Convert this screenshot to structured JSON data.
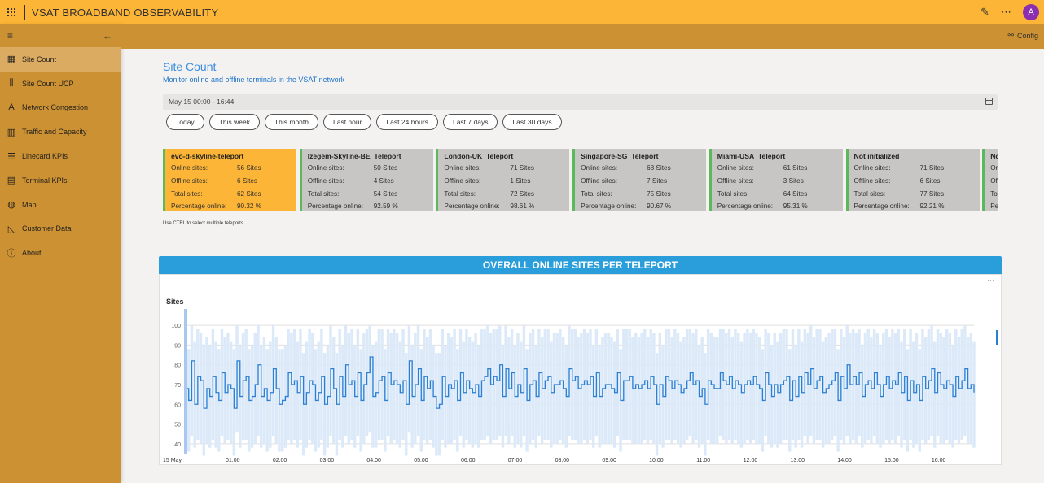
{
  "app": {
    "title": "VSAT BROADBAND OBSERVABILITY",
    "avatar_initial": "A"
  },
  "topbar_icons": [
    "app-launcher-icon",
    "edit-pencil-icon",
    "more-ellipsis-icon"
  ],
  "sidebar": {
    "items": [
      {
        "label": "Site Count",
        "icon": "site-count-icon",
        "active": true
      },
      {
        "label": "Site Count UCP",
        "icon": "site-count-ucp-icon"
      },
      {
        "label": "Network Congestion",
        "icon": "network-congestion-icon"
      },
      {
        "label": "Traffic and Capacity",
        "icon": "traffic-capacity-icon"
      },
      {
        "label": "Linecard KPIs",
        "icon": "linecard-kpis-icon"
      },
      {
        "label": "Terminal KPIs",
        "icon": "terminal-kpis-icon"
      },
      {
        "label": "Map",
        "icon": "globe-icon"
      },
      {
        "label": "Customer Data",
        "icon": "customer-data-icon"
      },
      {
        "label": "About",
        "icon": "info-icon"
      }
    ]
  },
  "cmdbar": {
    "config_label": "Config"
  },
  "page": {
    "title": "Site Count",
    "subtitle": "Monitor online and offline terminals in the VSAT network",
    "date_range": "May 15 00:00 - 16:44",
    "filters": [
      "Today",
      "This week",
      "This month",
      "Last hour",
      "Last 24 hours",
      "Last 7 days",
      "Last 30 days"
    ],
    "hint": "Use CTRL to select multiple teleports"
  },
  "teleports": [
    {
      "name": "evo-d-skyline-teleport",
      "online": "56 Sites",
      "offline": "6 Sites",
      "total": "62 Sites",
      "pct": "90.32 %",
      "selected": true
    },
    {
      "name": "Izegem-Skyline-BE_Teleport",
      "online": "50 Sites",
      "offline": "4 Sites",
      "total": "54 Sites",
      "pct": "92.59 %"
    },
    {
      "name": "London-UK_Teleport",
      "online": "71 Sites",
      "offline": "1 Sites",
      "total": "72 Sites",
      "pct": "98.61 %"
    },
    {
      "name": "Singapore-SG_Teleport",
      "online": "68 Sites",
      "offline": "7 Sites",
      "total": "75 Sites",
      "pct": "90.67 %"
    },
    {
      "name": "Miami-USA_Teleport",
      "online": "61 Sites",
      "offline": "3 Sites",
      "total": "64 Sites",
      "pct": "95.31 %"
    },
    {
      "name": "Not initialized",
      "online": "71 Sites",
      "offline": "6 Sites",
      "total": "77 Sites",
      "pct": "92.21 %"
    },
    {
      "name": "No",
      "online": "",
      "offline": "",
      "total": "",
      "pct": ""
    }
  ],
  "card_labels": {
    "online": "Online sites:",
    "offline": "Offline sites:",
    "total": "Total sites:",
    "pct": "Percentage online:"
  },
  "chart_banner": "OVERALL ONLINE SITES PER TELEPORT",
  "chart_data": {
    "type": "line",
    "ylabel": "Sites",
    "ylim": [
      35,
      105
    ],
    "yticks": [
      40,
      50,
      60,
      70,
      80,
      90,
      100
    ],
    "xticks": [
      "15 May",
      "01:00",
      "02:00",
      "03:00",
      "04:00",
      "05:00",
      "06:00",
      "07:00",
      "08:00",
      "09:00",
      "10:00",
      "11:00",
      "12:00",
      "13:00",
      "14:00",
      "15:00",
      "16:00"
    ],
    "x_start_hours": 0,
    "x_end_hours": 16.75,
    "series": [
      {
        "values": [
          68,
          62,
          82,
          60,
          74,
          72,
          58,
          68,
          64,
          74,
          66,
          62,
          76,
          66,
          70,
          68,
          58,
          82,
          64,
          72,
          74,
          62,
          64,
          70,
          80,
          64,
          68,
          62,
          66,
          78,
          68,
          60,
          62,
          64,
          76,
          70,
          72,
          66,
          74,
          60,
          66,
          72,
          70,
          62,
          66,
          74,
          60,
          64,
          78,
          68,
          60,
          74,
          64,
          80,
          70,
          72,
          64,
          76,
          62,
          70,
          76,
          84,
          64,
          66,
          72,
          74,
          62,
          76,
          70,
          72,
          70,
          66,
          72,
          60,
          82,
          64,
          70,
          78,
          62,
          74,
          68,
          72,
          64,
          58,
          60,
          74,
          64,
          70,
          68,
          72,
          62,
          76,
          66,
          72,
          68,
          66,
          70,
          64,
          72,
          74,
          78,
          70,
          74,
          72,
          80,
          64,
          78,
          68,
          76,
          64,
          70,
          66,
          78,
          62,
          70,
          72,
          64,
          76,
          68,
          72,
          74,
          66,
          70,
          70,
          72,
          68,
          64,
          78,
          72,
          74,
          68,
          70,
          72,
          70,
          74,
          64,
          76,
          64,
          68,
          70,
          70,
          68,
          66,
          76,
          62,
          72,
          72,
          74,
          68,
          70,
          68,
          70,
          72,
          68,
          74,
          70,
          60,
          70,
          64,
          74,
          72,
          68,
          72,
          70,
          66,
          68,
          72,
          76,
          70,
          72,
          64,
          68,
          60,
          72,
          70,
          68,
          68,
          76,
          72,
          70,
          74,
          68,
          72,
          70,
          66,
          70,
          72,
          70,
          74,
          70,
          68,
          62,
          76,
          70,
          64,
          70,
          66,
          70,
          72,
          74,
          62,
          72,
          64,
          74,
          66,
          76,
          70,
          78,
          68,
          72,
          74,
          66,
          68,
          70,
          72,
          76,
          62,
          74,
          68,
          80,
          70,
          74,
          70,
          76,
          64,
          70,
          72,
          68,
          76,
          70,
          64,
          70,
          74,
          68,
          72,
          70,
          76,
          66,
          74,
          62,
          72,
          66,
          70,
          62,
          74,
          68,
          72,
          78,
          66,
          76,
          70,
          68,
          72,
          70,
          64,
          74,
          68,
          72,
          78,
          68,
          70,
          66
        ]
      },
      {
        "name": "band-high",
        "values": [
          96,
          88,
          100,
          92,
          98,
          96,
          90,
          94,
          90,
          98,
          92,
          88,
          98,
          94,
          96,
          92,
          88,
          100,
          90,
          96,
          98,
          88,
          90,
          96,
          100,
          90,
          94,
          88,
          92,
          100,
          94,
          88,
          88,
          90,
          98,
          96,
          98,
          92,
          98,
          86,
          92,
          98,
          96,
          88,
          92,
          98,
          86,
          90,
          100,
          94,
          86,
          98,
          90,
          100,
          96,
          98,
          90,
          98,
          88,
          96,
          98,
          100,
          90,
          92,
          98,
          98,
          88,
          98,
          96,
          98,
          96,
          92,
          98,
          86,
          100,
          90,
          96,
          100,
          88,
          98,
          94,
          98,
          90,
          86,
          86,
          98,
          90,
          96,
          94,
          98,
          88,
          98,
          92,
          98,
          94,
          92,
          96,
          90,
          98,
          98,
          100,
          96,
          98,
          98,
          100,
          90,
          100,
          94,
          98,
          90,
          96,
          92,
          100,
          88,
          96,
          98,
          90,
          98,
          94,
          98,
          98,
          92,
          96,
          96,
          98,
          94,
          90,
          100,
          98,
          98,
          94,
          96,
          98,
          96,
          98,
          90,
          98,
          90,
          94,
          96,
          96,
          94,
          92,
          98,
          88,
          98,
          98,
          98,
          94,
          96,
          94,
          96,
          98,
          94,
          98,
          96,
          86,
          96,
          90,
          98,
          98,
          94,
          98,
          96,
          92,
          94,
          98,
          98,
          96,
          98,
          90,
          94,
          86,
          98,
          96,
          94,
          94,
          98,
          98,
          96,
          98,
          94,
          98,
          96,
          92,
          96,
          98,
          96,
          98,
          96,
          94,
          88,
          98,
          96,
          90,
          96,
          92,
          96,
          98,
          98,
          88,
          98,
          90,
          98,
          92,
          98,
          96,
          100,
          94,
          98,
          98,
          92,
          94,
          96,
          98,
          98,
          88,
          98,
          94,
          100,
          96,
          98,
          96,
          98,
          90,
          96,
          98,
          94,
          98,
          96,
          90,
          96,
          98,
          94,
          98,
          96,
          98,
          92,
          98,
          88,
          98,
          92,
          96,
          88,
          98,
          94,
          98,
          100,
          92,
          98,
          96,
          94,
          98,
          96,
          90,
          98,
          94,
          98,
          100,
          94,
          96,
          92
        ]
      },
      {
        "name": "band-low",
        "values": [
          40,
          36,
          44,
          38,
          42,
          40,
          34,
          40,
          38,
          42,
          38,
          36,
          44,
          40,
          42,
          40,
          34,
          46,
          38,
          42,
          42,
          36,
          38,
          40,
          44,
          38,
          40,
          36,
          38,
          44,
          40,
          36,
          36,
          38,
          42,
          40,
          42,
          38,
          42,
          34,
          38,
          42,
          40,
          36,
          38,
          42,
          34,
          38,
          44,
          40,
          34,
          42,
          38,
          44,
          40,
          42,
          38,
          44,
          36,
          40,
          44,
          46,
          38,
          38,
          42,
          42,
          36,
          44,
          40,
          42,
          40,
          38,
          42,
          34,
          46,
          38,
          40,
          44,
          36,
          42,
          40,
          42,
          38,
          34,
          34,
          42,
          38,
          40,
          40,
          42,
          36,
          44,
          38,
          42,
          40,
          38,
          40,
          38,
          42,
          42,
          44,
          40,
          42,
          42,
          44,
          38,
          44,
          40,
          44,
          38,
          40,
          38,
          44,
          36,
          40,
          42,
          38,
          44,
          40,
          42,
          42,
          38,
          40,
          40,
          42,
          40,
          38,
          44,
          42,
          42,
          40,
          40,
          42,
          40,
          42,
          38,
          44,
          38,
          40,
          40,
          40,
          40,
          38,
          44,
          36,
          42,
          42,
          42,
          40,
          40,
          40,
          40,
          42,
          40,
          42,
          40,
          34,
          40,
          38,
          42,
          42,
          40,
          42,
          40,
          38,
          40,
          42,
          44,
          40,
          42,
          38,
          40,
          34,
          42,
          40,
          40,
          40,
          44,
          42,
          40,
          42,
          40,
          42,
          40,
          38,
          40,
          42,
          40,
          42,
          40,
          40,
          36,
          44,
          40,
          38,
          40,
          38,
          40,
          42,
          42,
          36,
          42,
          38,
          42,
          38,
          44,
          40,
          44,
          40,
          42,
          42,
          38,
          40,
          40,
          42,
          44,
          36,
          42,
          40,
          44,
          40,
          42,
          40,
          44,
          38,
          40,
          42,
          40,
          44,
          40,
          38,
          40,
          42,
          40,
          42,
          40,
          44,
          38,
          42,
          36,
          42,
          38,
          40,
          36,
          42,
          40,
          42,
          44,
          38,
          44,
          40,
          40,
          42,
          40,
          38,
          42,
          40,
          42,
          44,
          40,
          40,
          38
        ]
      }
    ],
    "colors": {
      "line": "#2a7fd4",
      "band": "#dce9f8"
    }
  }
}
